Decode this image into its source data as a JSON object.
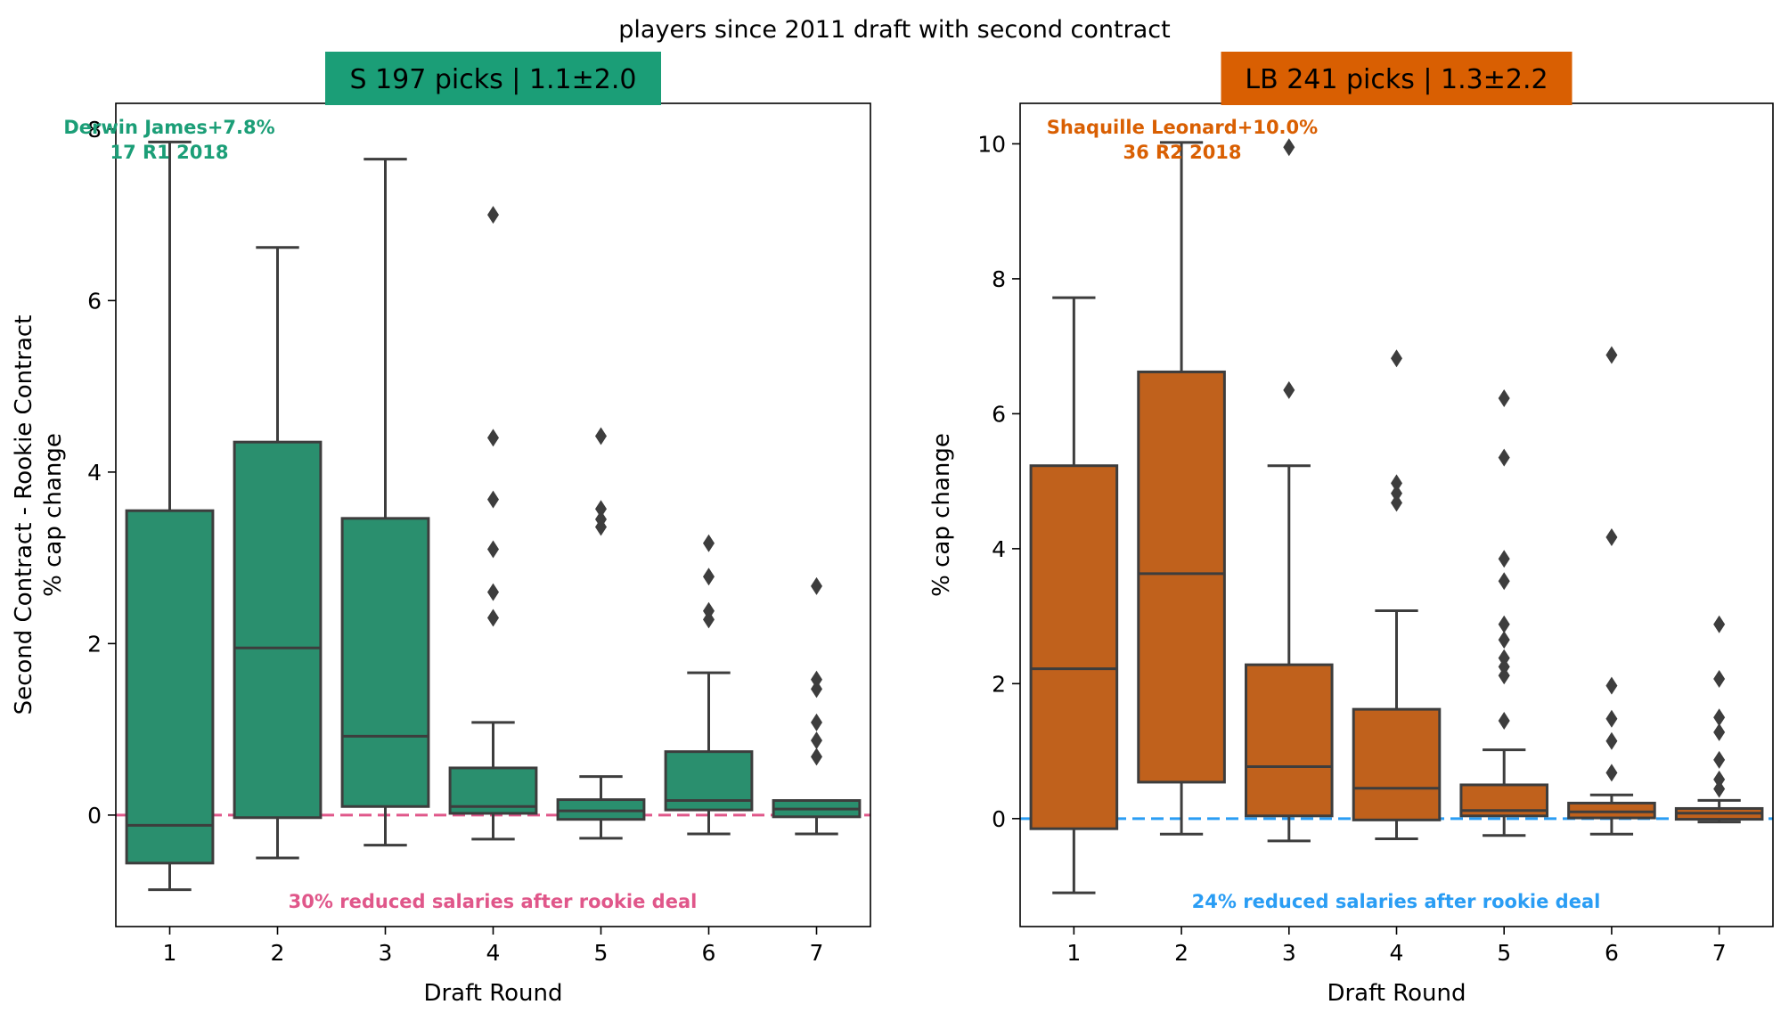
{
  "suptitle": "players since 2011 draft with second contract",
  "chart_data": [
    {
      "type": "box",
      "title": "S 197 picks | 1.1±2.0",
      "title_color": "#1b9e77",
      "box_color": "#2a8f6e",
      "xlabel": "Draft Round",
      "ylabel_line1": "Second Contract - Rookie Contract",
      "ylabel_line2": "% cap change",
      "ylim": [
        -1.3,
        8.3
      ],
      "yticks": [
        0,
        2,
        4,
        6,
        8
      ],
      "tick_labels": [
        "0",
        "2",
        "4",
        "6",
        "8"
      ],
      "categories": [
        "1",
        "2",
        "3",
        "4",
        "5",
        "6",
        "7"
      ],
      "boxes": [
        {
          "round": "1",
          "whisker_low": -0.87,
          "q1": -0.56,
          "median": -0.12,
          "q3": 3.55,
          "whisker_high": 7.85,
          "fliers": []
        },
        {
          "round": "2",
          "whisker_low": -0.5,
          "q1": -0.03,
          "median": 1.95,
          "q3": 4.35,
          "whisker_high": 6.62,
          "fliers": []
        },
        {
          "round": "3",
          "whisker_low": -0.35,
          "q1": 0.1,
          "median": 0.92,
          "q3": 3.46,
          "whisker_high": 7.65,
          "fliers": []
        },
        {
          "round": "4",
          "whisker_low": -0.28,
          "q1": 0.02,
          "median": 0.1,
          "q3": 0.55,
          "whisker_high": 1.08,
          "fliers": [
            7.0,
            4.4,
            3.68,
            3.1,
            2.6,
            2.3
          ]
        },
        {
          "round": "5",
          "whisker_low": -0.27,
          "q1": -0.05,
          "median": 0.05,
          "q3": 0.18,
          "whisker_high": 0.45,
          "fliers": [
            4.42,
            3.57,
            3.45,
            3.36
          ]
        },
        {
          "round": "6",
          "whisker_low": -0.22,
          "q1": 0.06,
          "median": 0.17,
          "q3": 0.74,
          "whisker_high": 1.66,
          "fliers": [
            3.17,
            2.78,
            2.38,
            2.28
          ]
        },
        {
          "round": "7",
          "whisker_low": -0.22,
          "q1": -0.02,
          "median": 0.07,
          "q3": 0.17,
          "whisker_high": 0.17,
          "fliers": [
            2.67,
            1.58,
            1.47,
            1.08,
            0.87,
            0.68
          ]
        }
      ],
      "refline": {
        "y": 0,
        "color": "#e0578a",
        "style": "dashed"
      },
      "annotation_top_line1": "Derwin James+7.8%",
      "annotation_top_line2": "17 R1 2018",
      "annotation_bottom": "30% reduced salaries after rookie deal"
    },
    {
      "type": "box",
      "title": "LB 241 picks | 1.3±2.2",
      "title_color": "#d95f02",
      "box_color": "#c0611c",
      "xlabel": "Draft Round",
      "ylabel_line1": "% cap change",
      "ylim": [
        -1.6,
        10.6
      ],
      "yticks": [
        0,
        2,
        4,
        6,
        8,
        10
      ],
      "tick_labels": [
        "0",
        "2",
        "4",
        "6",
        "8",
        "10"
      ],
      "categories": [
        "1",
        "2",
        "3",
        "4",
        "5",
        "6",
        "7"
      ],
      "boxes": [
        {
          "round": "1",
          "whisker_low": -1.1,
          "q1": -0.15,
          "median": 2.22,
          "q3": 5.23,
          "whisker_high": 7.72,
          "fliers": []
        },
        {
          "round": "2",
          "whisker_low": -0.23,
          "q1": 0.54,
          "median": 3.63,
          "q3": 6.62,
          "whisker_high": 10.02,
          "fliers": []
        },
        {
          "round": "3",
          "whisker_low": -0.33,
          "q1": 0.04,
          "median": 0.77,
          "q3": 2.28,
          "whisker_high": 5.23,
          "fliers": [
            9.95,
            6.35
          ]
        },
        {
          "round": "4",
          "whisker_low": -0.3,
          "q1": -0.02,
          "median": 0.45,
          "q3": 1.62,
          "whisker_high": 3.08,
          "fliers": [
            6.82,
            4.97,
            4.82,
            4.68
          ]
        },
        {
          "round": "5",
          "whisker_low": -0.25,
          "q1": 0.04,
          "median": 0.12,
          "q3": 0.5,
          "whisker_high": 1.02,
          "fliers": [
            6.23,
            5.35,
            3.85,
            3.52,
            2.88,
            2.65,
            2.38,
            2.25,
            2.12,
            1.45
          ]
        },
        {
          "round": "6",
          "whisker_low": -0.23,
          "q1": 0.01,
          "median": 0.1,
          "q3": 0.23,
          "whisker_high": 0.35,
          "fliers": [
            6.87,
            4.17,
            1.97,
            1.48,
            1.15,
            0.68
          ]
        },
        {
          "round": "7",
          "whisker_low": -0.05,
          "q1": -0.01,
          "median": 0.08,
          "q3": 0.15,
          "whisker_high": 0.27,
          "fliers": [
            2.88,
            2.07,
            1.5,
            1.28,
            0.87,
            0.58,
            0.44
          ]
        }
      ],
      "refline": {
        "y": 0,
        "color": "#2a9df4",
        "style": "dashed"
      },
      "annotation_top_line1": "Shaquille Leonard+10.0%",
      "annotation_top_line2": "36 R2 2018",
      "annotation_bottom": "24% reduced salaries after rookie deal"
    }
  ]
}
